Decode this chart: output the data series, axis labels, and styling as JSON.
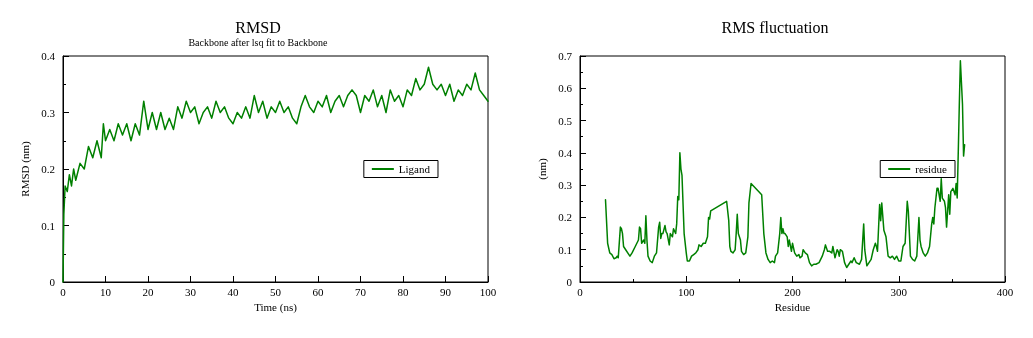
{
  "chart_data": [
    {
      "type": "line",
      "title": "RMSD",
      "subtitle": "Backbone after lsq fit to Backbone",
      "xlabel": "Time (ns)",
      "ylabel": "RMSD (nm)",
      "xlim": [
        0,
        100
      ],
      "xticks": [
        0,
        10,
        20,
        30,
        40,
        50,
        60,
        70,
        80,
        90,
        100
      ],
      "ylim": [
        0,
        0.4
      ],
      "yticks": [
        0,
        0.1,
        0.2,
        0.3,
        0.4
      ],
      "grid": false,
      "legend": "right",
      "marker": "none",
      "line_style": "solid",
      "series": [
        {
          "name": "Ligand",
          "color": "#008000",
          "x": [
            0,
            0.2,
            0.5,
            1,
            1.5,
            2,
            2.5,
            3,
            4,
            5,
            6,
            7,
            8,
            9,
            9.5,
            10,
            11,
            12,
            13,
            14,
            15,
            16,
            17,
            18,
            19,
            20,
            21,
            22,
            23,
            24,
            25,
            26,
            27,
            28,
            29,
            30,
            31,
            32,
            33,
            34,
            35,
            36,
            37,
            38,
            39,
            40,
            41,
            42,
            43,
            44,
            45,
            46,
            47,
            48,
            49,
            50,
            51,
            52,
            53,
            54,
            55,
            56,
            57,
            58,
            59,
            60,
            61,
            62,
            63,
            64,
            65,
            66,
            67,
            68,
            69,
            70,
            71,
            72,
            73,
            74,
            75,
            76,
            77,
            78,
            79,
            80,
            81,
            82,
            83,
            84,
            85,
            86,
            87,
            88,
            89,
            90,
            91,
            92,
            93,
            94,
            95,
            96,
            97,
            98,
            99,
            100
          ],
          "values": [
            0,
            0.12,
            0.17,
            0.16,
            0.19,
            0.17,
            0.2,
            0.18,
            0.21,
            0.2,
            0.24,
            0.22,
            0.25,
            0.22,
            0.28,
            0.25,
            0.27,
            0.25,
            0.28,
            0.26,
            0.28,
            0.25,
            0.28,
            0.26,
            0.32,
            0.27,
            0.3,
            0.27,
            0.3,
            0.27,
            0.29,
            0.27,
            0.31,
            0.29,
            0.32,
            0.3,
            0.31,
            0.28,
            0.3,
            0.31,
            0.29,
            0.32,
            0.3,
            0.31,
            0.29,
            0.28,
            0.3,
            0.29,
            0.31,
            0.29,
            0.33,
            0.3,
            0.32,
            0.29,
            0.31,
            0.3,
            0.32,
            0.3,
            0.31,
            0.29,
            0.28,
            0.31,
            0.33,
            0.31,
            0.3,
            0.32,
            0.31,
            0.33,
            0.3,
            0.32,
            0.33,
            0.31,
            0.33,
            0.34,
            0.33,
            0.3,
            0.33,
            0.32,
            0.34,
            0.31,
            0.33,
            0.3,
            0.34,
            0.32,
            0.33,
            0.31,
            0.34,
            0.33,
            0.36,
            0.34,
            0.35,
            0.38,
            0.35,
            0.34,
            0.35,
            0.33,
            0.35,
            0.32,
            0.34,
            0.33,
            0.35,
            0.34,
            0.37,
            0.34,
            0.33,
            0.32
          ]
        }
      ]
    },
    {
      "type": "line",
      "title": "RMS fluctuation",
      "xlabel": "Residue",
      "ylabel": "(nm)",
      "xlim": [
        0,
        400
      ],
      "xticks": [
        0,
        100,
        200,
        300,
        400
      ],
      "ylim": [
        0,
        0.7
      ],
      "yticks": [
        0,
        0.1,
        0.2,
        0.3,
        0.4,
        0.5,
        0.6,
        0.7
      ],
      "grid": false,
      "legend": "right",
      "marker": "none",
      "line_style": "solid",
      "series": [
        {
          "name": "residue",
          "color": "#008000",
          "x": [
            24,
            26,
            28,
            30,
            32,
            34,
            35,
            36,
            38,
            39,
            40,
            41,
            43,
            46,
            47,
            49,
            52,
            55,
            56,
            57,
            58,
            60,
            61,
            62,
            63,
            64,
            66,
            68,
            70,
            72,
            74,
            75,
            76,
            77,
            78,
            80,
            81,
            82,
            84,
            85,
            87,
            88,
            90,
            91,
            92,
            93,
            94,
            95,
            96,
            98,
            100,
            101,
            103,
            105,
            107,
            109,
            111,
            112,
            114,
            116,
            118,
            120,
            121,
            122,
            123,
            138,
            140,
            141,
            142,
            144,
            145,
            146,
            147,
            148,
            149,
            150,
            151,
            152,
            154,
            156,
            158,
            159,
            161,
            171,
            173,
            175,
            177,
            179,
            181,
            183,
            184,
            186,
            188,
            189,
            190,
            191,
            192,
            193,
            195,
            196,
            197,
            199,
            200,
            202,
            204,
            206,
            207,
            209,
            210,
            212,
            214,
            216,
            218,
            220,
            222,
            225,
            228,
            230,
            231,
            233,
            235,
            237,
            238,
            240,
            242,
            243,
            244,
            245,
            247,
            249,
            251,
            253,
            255,
            256,
            258,
            260,
            263,
            265,
            267,
            268,
            270,
            272,
            274,
            276,
            278,
            279,
            280,
            282,
            283,
            284,
            286,
            288,
            290,
            292,
            294,
            296,
            298,
            300,
            302,
            304,
            306,
            308,
            309,
            311,
            313,
            315,
            317,
            319,
            320,
            321,
            323,
            325,
            327,
            329,
            331,
            332,
            333,
            334,
            336,
            337,
            339,
            340,
            341,
            343,
            344,
            345,
            347,
            348,
            349,
            351,
            353,
            354,
            355,
            356,
            357,
            358,
            360,
            361,
            362
          ],
          "values": [
            0.255,
            0.12,
            0.09,
            0.085,
            0.072,
            0.075,
            0.08,
            0.075,
            0.17,
            0.165,
            0.15,
            0.11,
            0.1,
            0.085,
            0.08,
            0.09,
            0.11,
            0.13,
            0.17,
            0.165,
            0.12,
            0.13,
            0.12,
            0.205,
            0.13,
            0.08,
            0.065,
            0.06,
            0.08,
            0.09,
            0.17,
            0.185,
            0.135,
            0.15,
            0.15,
            0.175,
            0.155,
            0.15,
            0.115,
            0.15,
            0.14,
            0.165,
            0.15,
            0.18,
            0.265,
            0.255,
            0.4,
            0.35,
            0.33,
            0.15,
            0.09,
            0.065,
            0.065,
            0.08,
            0.085,
            0.09,
            0.1,
            0.115,
            0.11,
            0.12,
            0.12,
            0.14,
            0.2,
            0.195,
            0.22,
            0.25,
            0.19,
            0.11,
            0.095,
            0.09,
            0.095,
            0.1,
            0.15,
            0.21,
            0.15,
            0.14,
            0.13,
            0.095,
            0.085,
            0.09,
            0.14,
            0.245,
            0.305,
            0.27,
            0.15,
            0.09,
            0.07,
            0.06,
            0.065,
            0.06,
            0.08,
            0.09,
            0.15,
            0.2,
            0.15,
            0.165,
            0.15,
            0.15,
            0.14,
            0.11,
            0.13,
            0.095,
            0.12,
            0.09,
            0.08,
            0.085,
            0.075,
            0.08,
            0.1,
            0.09,
            0.085,
            0.06,
            0.05,
            0.055,
            0.055,
            0.06,
            0.08,
            0.1,
            0.115,
            0.095,
            0.095,
            0.09,
            0.11,
            0.075,
            0.1,
            0.095,
            0.08,
            0.1,
            0.095,
            0.06,
            0.045,
            0.055,
            0.065,
            0.06,
            0.075,
            0.06,
            0.055,
            0.07,
            0.18,
            0.1,
            0.05,
            0.06,
            0.07,
            0.1,
            0.12,
            0.11,
            0.095,
            0.24,
            0.19,
            0.245,
            0.16,
            0.14,
            0.08,
            0.075,
            0.08,
            0.07,
            0.08,
            0.065,
            0.065,
            0.11,
            0.12,
            0.25,
            0.22,
            0.08,
            0.07,
            0.065,
            0.08,
            0.2,
            0.13,
            0.11,
            0.09,
            0.08,
            0.09,
            0.11,
            0.18,
            0.2,
            0.18,
            0.23,
            0.29,
            0.29,
            0.25,
            0.32,
            0.26,
            0.25,
            0.23,
            0.17,
            0.27,
            0.21,
            0.28,
            0.29,
            0.27,
            0.305,
            0.26,
            0.4,
            0.55,
            0.685,
            0.55,
            0.39,
            0.425
          ]
        }
      ]
    }
  ]
}
